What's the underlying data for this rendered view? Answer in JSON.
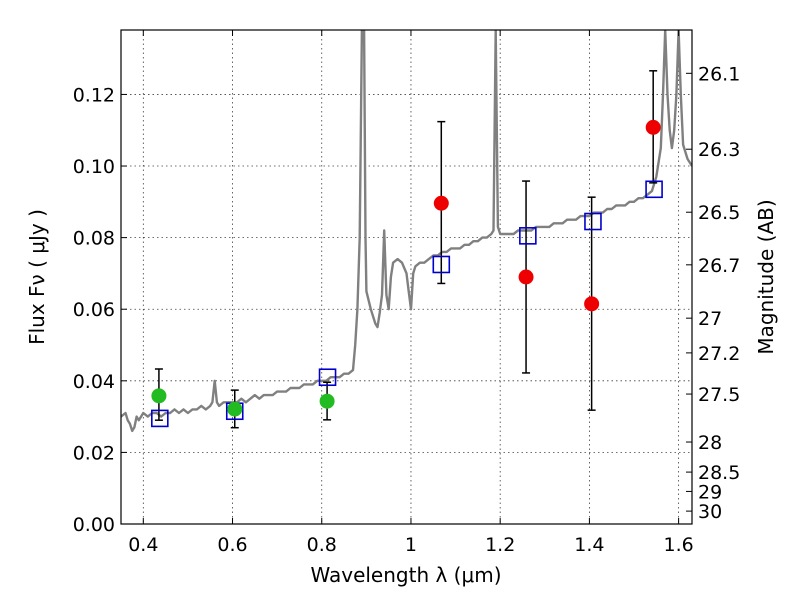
{
  "chart_data": {
    "type": "scatter",
    "title": "",
    "xlabel": "Wavelength  λ (μm)",
    "ylabel": "Flux  Fν  ( μJy )",
    "ylabel_right": "Magnitude (AB)",
    "xlim": [
      0.35,
      1.63
    ],
    "ylim": [
      0,
      0.138
    ],
    "grid": true,
    "x_ticks": [
      0.4,
      0.6,
      0.8,
      1.0,
      1.2,
      1.4,
      1.6
    ],
    "x_tick_labels": [
      "0.4",
      "0.6",
      "0.8",
      "1",
      "1.2",
      "1.4",
      "1.6"
    ],
    "y_ticks": [
      0.0,
      0.02,
      0.04,
      0.06,
      0.08,
      0.1,
      0.12
    ],
    "y_tick_labels": [
      "0.00",
      "0.02",
      "0.04",
      "0.06",
      "0.08",
      "0.10",
      "0.12"
    ],
    "right_ticks": [
      {
        "label": "26.1",
        "flux": 0.1259
      },
      {
        "label": "26.3",
        "flux": 0.1047
      },
      {
        "label": "26.5",
        "flux": 0.0871
      },
      {
        "label": "26.7",
        "flux": 0.0724
      },
      {
        "label": "27",
        "flux": 0.0575
      },
      {
        "label": "27.2",
        "flux": 0.0478
      },
      {
        "label": "27.5",
        "flux": 0.0363
      },
      {
        "label": "28",
        "flux": 0.0229
      },
      {
        "label": "28.5",
        "flux": 0.0145
      },
      {
        "label": "29",
        "flux": 0.0091
      },
      {
        "label": "30",
        "flux": 0.0036
      }
    ],
    "series": [
      {
        "kind": "line",
        "color": "#808080",
        "points": [
          [
            0.35,
            0.03
          ],
          [
            0.36,
            0.031
          ],
          [
            0.365,
            0.029
          ],
          [
            0.37,
            0.028
          ],
          [
            0.375,
            0.026
          ],
          [
            0.38,
            0.027
          ],
          [
            0.385,
            0.03
          ],
          [
            0.39,
            0.029
          ],
          [
            0.4,
            0.031
          ],
          [
            0.41,
            0.03
          ],
          [
            0.42,
            0.031
          ],
          [
            0.43,
            0.031
          ],
          [
            0.44,
            0.03
          ],
          [
            0.45,
            0.031
          ],
          [
            0.46,
            0.031
          ],
          [
            0.47,
            0.032
          ],
          [
            0.48,
            0.031
          ],
          [
            0.49,
            0.032
          ],
          [
            0.5,
            0.031
          ],
          [
            0.51,
            0.032
          ],
          [
            0.52,
            0.032
          ],
          [
            0.53,
            0.033
          ],
          [
            0.54,
            0.032
          ],
          [
            0.55,
            0.033
          ],
          [
            0.555,
            0.034
          ],
          [
            0.56,
            0.04
          ],
          [
            0.565,
            0.034
          ],
          [
            0.57,
            0.033
          ],
          [
            0.58,
            0.034
          ],
          [
            0.59,
            0.034
          ],
          [
            0.6,
            0.034
          ],
          [
            0.61,
            0.034
          ],
          [
            0.62,
            0.035
          ],
          [
            0.63,
            0.034
          ],
          [
            0.64,
            0.035
          ],
          [
            0.65,
            0.036
          ],
          [
            0.66,
            0.035
          ],
          [
            0.67,
            0.036
          ],
          [
            0.68,
            0.036
          ],
          [
            0.69,
            0.036
          ],
          [
            0.7,
            0.037
          ],
          [
            0.71,
            0.037
          ],
          [
            0.72,
            0.037
          ],
          [
            0.73,
            0.038
          ],
          [
            0.74,
            0.038
          ],
          [
            0.75,
            0.038
          ],
          [
            0.76,
            0.039
          ],
          [
            0.77,
            0.039
          ],
          [
            0.78,
            0.039
          ],
          [
            0.79,
            0.04
          ],
          [
            0.8,
            0.04
          ],
          [
            0.81,
            0.04
          ],
          [
            0.82,
            0.041
          ],
          [
            0.83,
            0.041
          ],
          [
            0.84,
            0.041
          ],
          [
            0.85,
            0.042
          ],
          [
            0.86,
            0.042
          ],
          [
            0.87,
            0.043
          ],
          [
            0.875,
            0.05
          ],
          [
            0.88,
            0.06
          ],
          [
            0.885,
            0.08
          ],
          [
            0.89,
            0.138
          ],
          [
            0.895,
            0.138
          ],
          [
            0.898,
            0.08
          ],
          [
            0.9,
            0.065
          ],
          [
            0.91,
            0.06
          ],
          [
            0.92,
            0.056
          ],
          [
            0.925,
            0.055
          ],
          [
            0.93,
            0.059
          ],
          [
            0.935,
            0.064
          ],
          [
            0.94,
            0.082
          ],
          [
            0.945,
            0.064
          ],
          [
            0.95,
            0.06
          ],
          [
            0.955,
            0.069
          ],
          [
            0.96,
            0.073
          ],
          [
            0.97,
            0.074
          ],
          [
            0.98,
            0.073
          ],
          [
            0.99,
            0.07
          ],
          [
            0.995,
            0.065
          ],
          [
            1.0,
            0.06
          ],
          [
            1.005,
            0.07
          ],
          [
            1.01,
            0.072
          ],
          [
            1.02,
            0.073
          ],
          [
            1.03,
            0.073
          ],
          [
            1.04,
            0.074
          ],
          [
            1.05,
            0.075
          ],
          [
            1.06,
            0.075
          ],
          [
            1.07,
            0.076
          ],
          [
            1.08,
            0.076
          ],
          [
            1.09,
            0.077
          ],
          [
            1.1,
            0.077
          ],
          [
            1.11,
            0.077
          ],
          [
            1.12,
            0.078
          ],
          [
            1.13,
            0.078
          ],
          [
            1.14,
            0.079
          ],
          [
            1.15,
            0.079
          ],
          [
            1.16,
            0.08
          ],
          [
            1.17,
            0.08
          ],
          [
            1.18,
            0.081
          ],
          [
            1.185,
            0.082
          ],
          [
            1.19,
            0.138
          ],
          [
            1.195,
            0.083
          ],
          [
            1.2,
            0.081
          ],
          [
            1.21,
            0.081
          ],
          [
            1.22,
            0.081
          ],
          [
            1.23,
            0.081
          ],
          [
            1.24,
            0.082
          ],
          [
            1.25,
            0.082
          ],
          [
            1.26,
            0.082
          ],
          [
            1.27,
            0.082
          ],
          [
            1.28,
            0.083
          ],
          [
            1.29,
            0.083
          ],
          [
            1.3,
            0.083
          ],
          [
            1.31,
            0.083
          ],
          [
            1.32,
            0.084
          ],
          [
            1.33,
            0.084
          ],
          [
            1.34,
            0.084
          ],
          [
            1.35,
            0.085
          ],
          [
            1.36,
            0.085
          ],
          [
            1.37,
            0.085
          ],
          [
            1.38,
            0.086
          ],
          [
            1.39,
            0.086
          ],
          [
            1.4,
            0.086
          ],
          [
            1.41,
            0.087
          ],
          [
            1.42,
            0.087
          ],
          [
            1.43,
            0.087
          ],
          [
            1.44,
            0.088
          ],
          [
            1.45,
            0.088
          ],
          [
            1.46,
            0.089
          ],
          [
            1.47,
            0.089
          ],
          [
            1.48,
            0.089
          ],
          [
            1.49,
            0.09
          ],
          [
            1.5,
            0.09
          ],
          [
            1.51,
            0.091
          ],
          [
            1.52,
            0.091
          ],
          [
            1.53,
            0.092
          ],
          [
            1.54,
            0.093
          ],
          [
            1.55,
            0.097
          ],
          [
            1.56,
            0.105
          ],
          [
            1.565,
            0.12
          ],
          [
            1.57,
            0.138
          ],
          [
            1.575,
            0.12
          ],
          [
            1.58,
            0.11
          ],
          [
            1.585,
            0.105
          ],
          [
            1.59,
            0.11
          ],
          [
            1.595,
            0.12
          ],
          [
            1.6,
            0.138
          ],
          [
            1.605,
            0.12
          ],
          [
            1.61,
            0.106
          ],
          [
            1.62,
            0.102
          ],
          [
            1.63,
            0.1
          ]
        ]
      },
      {
        "kind": "squares",
        "color": "#0000cc",
        "x": [
          0.437,
          0.605,
          0.813,
          1.068,
          1.262,
          1.408,
          1.545
        ],
        "y": [
          0.0295,
          0.0315,
          0.041,
          0.0725,
          0.0805,
          0.0845,
          0.0935
        ]
      },
      {
        "kind": "points_with_errors",
        "color": "#22bb22",
        "x": [
          0.435,
          0.605,
          0.812
        ],
        "y": [
          0.0358,
          0.0321,
          0.0343
        ],
        "err_low": [
          0.0068,
          0.0052,
          0.0052
        ],
        "err_high": [
          0.0075,
          0.0053,
          0.0053
        ]
      },
      {
        "kind": "points_with_errors",
        "color": "#ee0000",
        "x": [
          1.068,
          1.258,
          1.405,
          1.543
        ],
        "y": [
          0.0896,
          0.069,
          0.0615,
          0.1108
        ],
        "err_low": [
          0.0224,
          0.0268,
          0.0297,
          0.0155
        ],
        "err_high": [
          0.0228,
          0.0268,
          0.0298,
          0.0158
        ]
      }
    ]
  }
}
